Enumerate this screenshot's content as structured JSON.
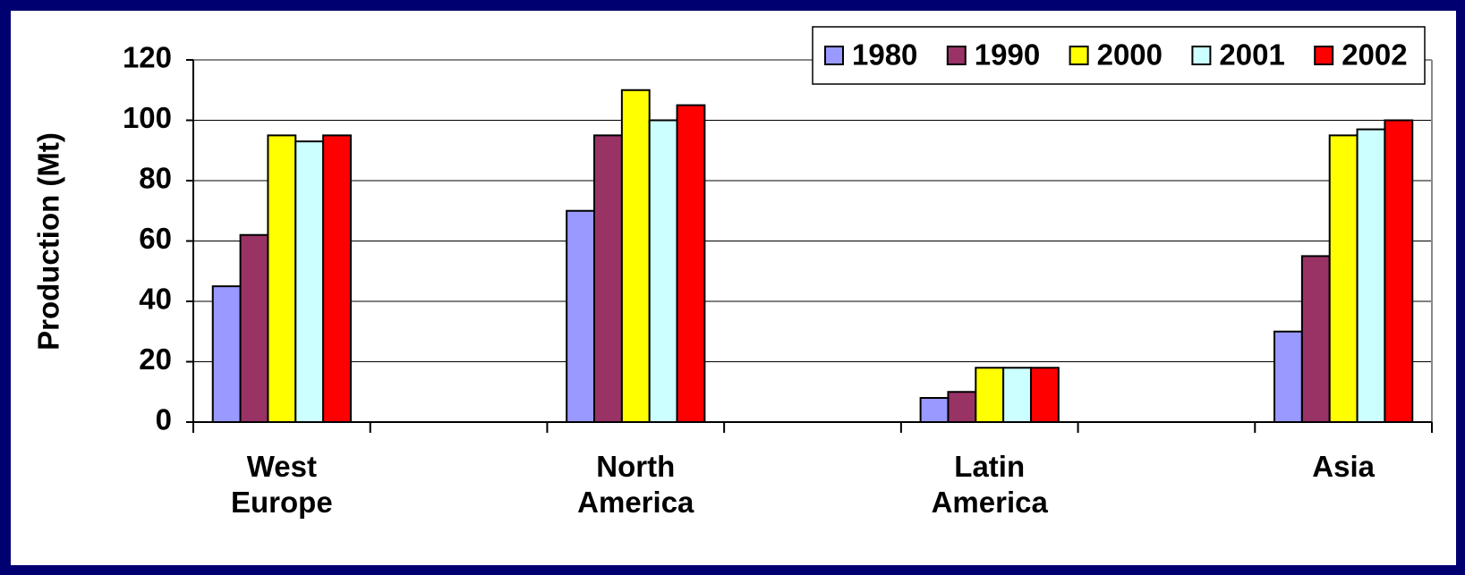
{
  "chart_data": {
    "type": "bar",
    "y_label": "Production (Mt)",
    "categories": [
      "West Europe",
      null,
      "North America",
      null,
      "Latin America",
      null,
      "Asia"
    ],
    "series": [
      {
        "name": "1980",
        "color": "#9999ff",
        "values": [
          45,
          null,
          70,
          null,
          8,
          null,
          30
        ]
      },
      {
        "name": "1990",
        "color": "#993366",
        "values": [
          62,
          null,
          95,
          null,
          10,
          null,
          55
        ]
      },
      {
        "name": "2000",
        "color": "#ffff00",
        "values": [
          95,
          null,
          110,
          null,
          18,
          null,
          95
        ]
      },
      {
        "name": "2001",
        "color": "#ccffff",
        "values": [
          93,
          null,
          100,
          null,
          18,
          null,
          97
        ]
      },
      {
        "name": "2002",
        "color": "#ff0000",
        "values": [
          95,
          null,
          105,
          null,
          18,
          null,
          100
        ]
      }
    ],
    "ylim": [
      0,
      120
    ],
    "yticks": [
      0,
      20,
      40,
      60,
      80,
      100,
      120
    ],
    "grid": true,
    "legend": "top-right"
  }
}
